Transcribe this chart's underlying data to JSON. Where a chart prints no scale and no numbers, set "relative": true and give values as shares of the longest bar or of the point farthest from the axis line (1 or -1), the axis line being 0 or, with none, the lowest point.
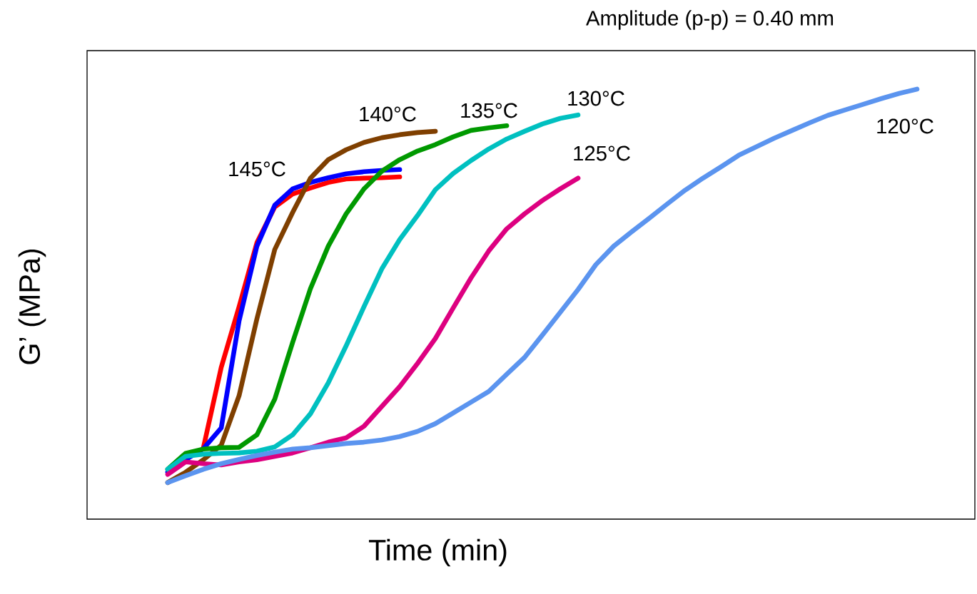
{
  "chart_data": {
    "type": "line",
    "relative": true,
    "title": "Amplitude (p-p) = 0.40 mm",
    "xlabel": "Time (min)",
    "ylabel": "G’ (MPa)",
    "categories": [
      null,
      null,
      null,
      null,
      null,
      null,
      null,
      null,
      null,
      null,
      null,
      null,
      null,
      null,
      null,
      null,
      null,
      null,
      null,
      null,
      null,
      null,
      null,
      null,
      null,
      null,
      null,
      null,
      null,
      null,
      null,
      null,
      null,
      null,
      null,
      null,
      null,
      null,
      null,
      null,
      null,
      null,
      null
    ],
    "series": [
      {
        "color": "#ff0000",
        "values": [
          null,
          null,
          0.166,
          0.353,
          0.494,
          0.643,
          0.726,
          0.756,
          0.77,
          0.783,
          0.791,
          0.793,
          0.794,
          0.796,
          null,
          null,
          null,
          null,
          null,
          null,
          null,
          null,
          null,
          null,
          null,
          null,
          null,
          null,
          null,
          null,
          null,
          null,
          null,
          null,
          null,
          null,
          null,
          null,
          null,
          null,
          null,
          null,
          null
        ]
      },
      {
        "name": "145°C",
        "color": "#0000ff",
        "values": [
          0.109,
          0.138,
          0.164,
          0.212,
          0.461,
          0.635,
          0.73,
          0.768,
          0.783,
          0.794,
          0.803,
          0.808,
          0.811,
          0.813,
          null,
          null,
          null,
          null,
          null,
          null,
          null,
          null,
          null,
          null,
          null,
          null,
          null,
          null,
          null,
          null,
          null,
          null,
          null,
          null,
          null,
          null,
          null,
          null,
          null,
          null,
          null,
          null,
          null
        ]
      },
      {
        "name": "140°C",
        "color": "#7f3f00",
        "values": [
          0.085,
          0.109,
          0.138,
          0.172,
          0.287,
          0.466,
          0.627,
          0.713,
          0.793,
          0.836,
          0.859,
          0.876,
          0.887,
          0.894,
          0.899,
          0.902,
          null,
          null,
          null,
          null,
          null,
          null,
          null,
          null,
          null,
          null,
          null,
          null,
          null,
          null,
          null,
          null,
          null,
          null,
          null,
          null,
          null,
          null,
          null,
          null,
          null,
          null,
          null
        ]
      },
      {
        "name": "135°C",
        "color": "#009900",
        "values": [
          0.116,
          0.153,
          0.163,
          0.166,
          0.167,
          0.196,
          0.279,
          0.411,
          0.536,
          0.635,
          0.71,
          0.768,
          0.809,
          0.836,
          0.856,
          0.871,
          0.889,
          0.904,
          0.91,
          0.915,
          null,
          null,
          null,
          null,
          null,
          null,
          null,
          null,
          null,
          null,
          null,
          null,
          null,
          null,
          null,
          null,
          null,
          null,
          null,
          null,
          null,
          null,
          null
        ]
      },
      {
        "name": "130°C",
        "color": "#00c0c0",
        "values": [
          0.116,
          0.146,
          0.151,
          0.153,
          0.154,
          0.158,
          0.168,
          0.196,
          0.245,
          0.317,
          0.403,
          0.494,
          0.582,
          0.65,
          0.706,
          0.766,
          0.804,
          0.834,
          0.861,
          0.884,
          0.902,
          0.919,
          0.932,
          0.94,
          null,
          null,
          null,
          null,
          null,
          null,
          null,
          null,
          null,
          null,
          null,
          null,
          null,
          null,
          null,
          null,
          null,
          null,
          null
        ]
      },
      {
        "name": "125°C",
        "color": "#dd0080",
        "values": [
          0.104,
          0.133,
          0.129,
          0.126,
          0.133,
          0.138,
          0.146,
          0.154,
          0.166,
          0.179,
          0.189,
          0.216,
          0.262,
          0.308,
          0.362,
          0.42,
          0.491,
          0.561,
          0.624,
          0.675,
          0.71,
          0.741,
          0.768,
          0.793,
          null,
          null,
          null,
          null,
          null,
          null,
          null,
          null,
          null,
          null,
          null,
          null,
          null,
          null,
          null,
          null,
          null,
          null,
          null
        ]
      },
      {
        "name": "120°C",
        "color": "#5b94ef",
        "values": [
          0.085,
          0.101,
          0.116,
          0.129,
          0.139,
          0.148,
          0.156,
          0.163,
          0.166,
          0.171,
          0.176,
          0.179,
          0.184,
          0.192,
          0.204,
          0.222,
          0.247,
          0.272,
          0.297,
          0.337,
          0.376,
          0.428,
          0.481,
          0.534,
          0.592,
          0.635,
          0.668,
          0.7,
          0.733,
          0.765,
          0.793,
          0.819,
          0.846,
          0.866,
          0.886,
          0.904,
          0.922,
          0.939,
          0.952,
          0.965,
          0.978,
          0.99,
          1
        ]
      }
    ]
  }
}
